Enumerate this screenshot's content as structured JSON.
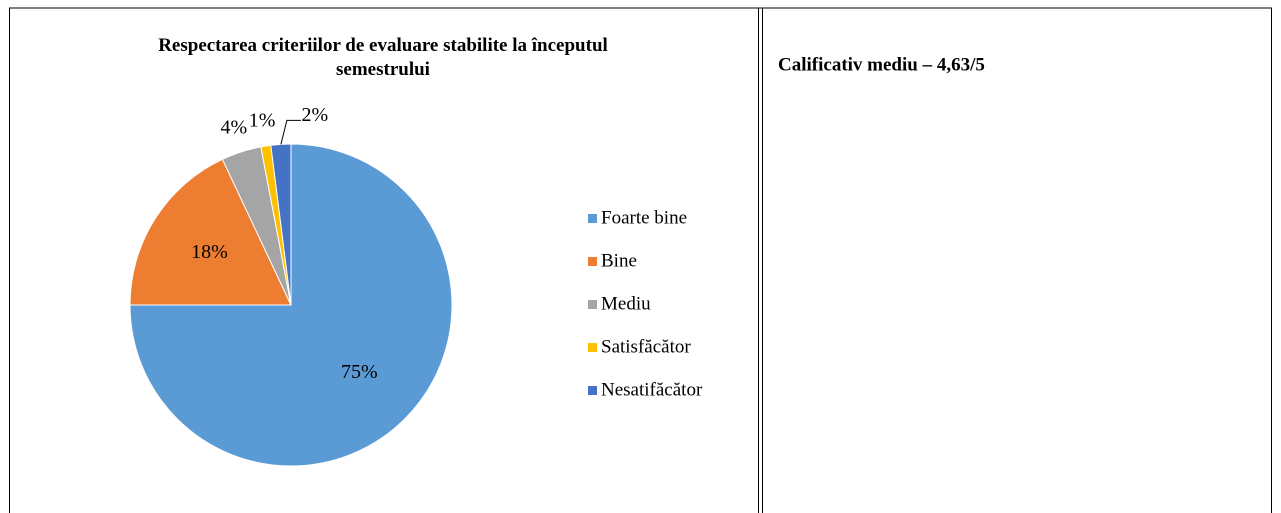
{
  "chart_data": {
    "type": "pie",
    "title": "Respectarea criteriilor de evaluare stabilite la începutul semestrului",
    "categories": [
      "Foarte bine",
      "Bine",
      "Mediu",
      "Satisfăcător",
      "Nesatifăcător"
    ],
    "values": [
      75,
      18,
      4,
      1,
      2
    ],
    "value_labels": [
      "75%",
      "18%",
      "4%",
      "1%",
      "2%"
    ],
    "colors": [
      "#5b9bd5",
      "#ed7d31",
      "#a5a5a5",
      "#ffc000",
      "#4472c4"
    ],
    "legend": "right"
  },
  "note": "Calificativ mediu – 4,63/5"
}
